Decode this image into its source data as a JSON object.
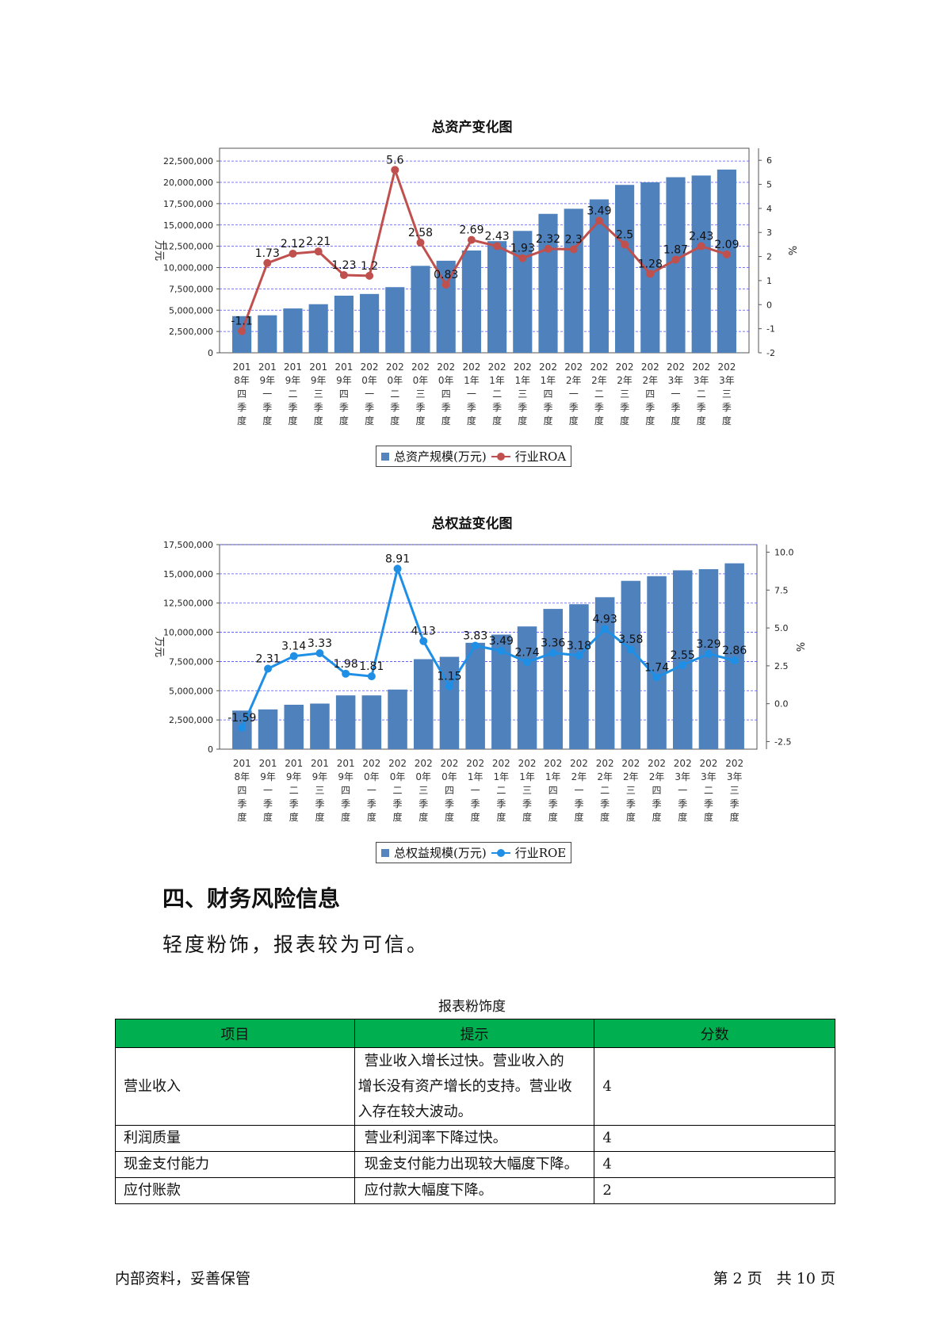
{
  "chart_data": [
    {
      "type": "bar",
      "title": "总资产变化图",
      "ylabel": "万元",
      "y2label": "%",
      "ylim": [
        0,
        24000000
      ],
      "y2lim": [
        -2,
        6.5
      ],
      "yticks": [
        "0",
        "2,500,000",
        "5,000,000",
        "7,500,000",
        "10,000,000",
        "12,500,000",
        "15,000,000",
        "17,500,000",
        "20,000,000",
        "22,500,000"
      ],
      "y2ticks": [
        "-2",
        "-1",
        "0",
        "1",
        "2",
        "3",
        "4",
        "5",
        "6"
      ],
      "categories": [
        "2018年四季度",
        "2019年一季度",
        "2019年二季度",
        "2019年三季度",
        "2019年四季度",
        "2020年一季度",
        "2020年二季度",
        "2020年三季度",
        "2020年四季度",
        "2021年一季度",
        "2021年二季度",
        "2021年三季度",
        "2021年四季度",
        "2022年一季度",
        "2022年二季度",
        "2022年三季度",
        "2022年四季度",
        "2023年一季度",
        "2023年二季度",
        "2023年三季度"
      ],
      "category_lines": [
        [
          "201",
          "8年",
          "四",
          "季",
          "度"
        ],
        [
          "201",
          "9年",
          "一",
          "季",
          "度"
        ],
        [
          "201",
          "9年",
          "二",
          "季",
          "度"
        ],
        [
          "201",
          "9年",
          "三",
          "季",
          "度"
        ],
        [
          "201",
          "9年",
          "四",
          "季",
          "度"
        ],
        [
          "202",
          "0年",
          "一",
          "季",
          "度"
        ],
        [
          "202",
          "0年",
          "二",
          "季",
          "度"
        ],
        [
          "202",
          "0年",
          "三",
          "季",
          "度"
        ],
        [
          "202",
          "0年",
          "四",
          "季",
          "度"
        ],
        [
          "202",
          "1年",
          "一",
          "季",
          "度"
        ],
        [
          "202",
          "1年",
          "二",
          "季",
          "度"
        ],
        [
          "202",
          "1年",
          "三",
          "季",
          "度"
        ],
        [
          "202",
          "1年",
          "四",
          "季",
          "度"
        ],
        [
          "202",
          "2年",
          "一",
          "季",
          "度"
        ],
        [
          "202",
          "2年",
          "二",
          "季",
          "度"
        ],
        [
          "202",
          "2年",
          "三",
          "季",
          "度"
        ],
        [
          "202",
          "2年",
          "四",
          "季",
          "度"
        ],
        [
          "202",
          "3年",
          "一",
          "季",
          "度"
        ],
        [
          "202",
          "3年",
          "二",
          "季",
          "度"
        ],
        [
          "202",
          "3年",
          "三",
          "季",
          "度"
        ]
      ],
      "series": [
        {
          "name": "总资产规模(万元)",
          "type": "bar",
          "color": "#4f81bd",
          "values": [
            4300000,
            4400000,
            5200000,
            5700000,
            6700000,
            6900000,
            7700000,
            10200000,
            10800000,
            12000000,
            13100000,
            14300000,
            16300000,
            16900000,
            18000000,
            19700000,
            20000000,
            20600000,
            20800000,
            21500000
          ]
        },
        {
          "name": "行业ROA",
          "type": "line",
          "axis": "y2",
          "color": "#c0504d",
          "values": [
            -1.1,
            1.73,
            2.12,
            2.21,
            1.23,
            1.2,
            5.6,
            2.58,
            0.83,
            2.69,
            2.43,
            1.93,
            2.32,
            2.3,
            3.49,
            2.5,
            1.28,
            1.87,
            2.43,
            2.09
          ],
          "labels": [
            "-1.1",
            "1.73",
            "2.12",
            "2.21",
            "1.23",
            "1.2",
            "5.6",
            "2.58",
            "0.83",
            "2.69",
            "2.43",
            "1.93",
            "2.32",
            "2.3",
            "3.49",
            "2.5",
            "1.28",
            "1.87",
            "2.43",
            "2.09"
          ]
        }
      ],
      "legend": "bottom"
    },
    {
      "type": "bar",
      "title": "总权益变化图",
      "ylabel": "万元",
      "y2label": "%",
      "ylim": [
        0,
        17500000
      ],
      "y2lim": [
        -3,
        10.5
      ],
      "yticks": [
        "0",
        "2,500,000",
        "5,000,000",
        "7,500,000",
        "10,000,000",
        "12,500,000",
        "15,000,000",
        "17,500,000"
      ],
      "y2ticks": [
        "-2.5",
        "0.0",
        "2.5",
        "5.0",
        "7.5",
        "10.0"
      ],
      "categories": [
        "2018年四季度",
        "2019年一季度",
        "2019年二季度",
        "2019年三季度",
        "2019年四季度",
        "2020年一季度",
        "2020年二季度",
        "2020年三季度",
        "2020年四季度",
        "2021年一季度",
        "2021年二季度",
        "2021年三季度",
        "2021年四季度",
        "2022年一季度",
        "2022年二季度",
        "2022年三季度",
        "2022年四季度",
        "2023年一季度",
        "2023年二季度",
        "2023年三季度"
      ],
      "category_lines": [
        [
          "201",
          "8年",
          "四",
          "季",
          "度"
        ],
        [
          "201",
          "9年",
          "一",
          "季",
          "度"
        ],
        [
          "201",
          "9年",
          "二",
          "季",
          "度"
        ],
        [
          "201",
          "9年",
          "三",
          "季",
          "度"
        ],
        [
          "201",
          "9年",
          "四",
          "季",
          "度"
        ],
        [
          "202",
          "0年",
          "一",
          "季",
          "度"
        ],
        [
          "202",
          "0年",
          "二",
          "季",
          "度"
        ],
        [
          "202",
          "0年",
          "三",
          "季",
          "度"
        ],
        [
          "202",
          "0年",
          "四",
          "季",
          "度"
        ],
        [
          "202",
          "1年",
          "一",
          "季",
          "度"
        ],
        [
          "202",
          "1年",
          "二",
          "季",
          "度"
        ],
        [
          "202",
          "1年",
          "三",
          "季",
          "度"
        ],
        [
          "202",
          "1年",
          "四",
          "季",
          "度"
        ],
        [
          "202",
          "2年",
          "一",
          "季",
          "度"
        ],
        [
          "202",
          "2年",
          "二",
          "季",
          "度"
        ],
        [
          "202",
          "2年",
          "三",
          "季",
          "度"
        ],
        [
          "202",
          "2年",
          "四",
          "季",
          "度"
        ],
        [
          "202",
          "3年",
          "一",
          "季",
          "度"
        ],
        [
          "202",
          "3年",
          "二",
          "季",
          "度"
        ],
        [
          "202",
          "3年",
          "三",
          "季",
          "度"
        ]
      ],
      "series": [
        {
          "name": "总权益规模(万元)",
          "type": "bar",
          "color": "#4f81bd",
          "values": [
            3300000,
            3400000,
            3800000,
            3900000,
            4600000,
            4600000,
            5100000,
            7700000,
            7900000,
            9100000,
            9800000,
            10500000,
            12000000,
            12400000,
            13000000,
            14400000,
            14800000,
            15300000,
            15400000,
            15900000
          ]
        },
        {
          "name": "行业ROE",
          "type": "line",
          "axis": "y2",
          "color": "#1f8fe5",
          "values": [
            -1.59,
            2.31,
            3.14,
            3.33,
            1.98,
            1.81,
            8.91,
            4.13,
            1.15,
            3.83,
            3.49,
            2.74,
            3.36,
            3.18,
            4.93,
            3.58,
            1.74,
            2.55,
            3.29,
            2.86
          ],
          "labels": [
            "-1.59",
            "2.31",
            "3.14",
            "3.33",
            "1.98",
            "1.81",
            "8.91",
            "4.13",
            "1.15",
            "3.83",
            "3.49",
            "2.74",
            "3.36",
            "3.18",
            "4.93",
            "3.58",
            "1.74",
            "2.55",
            "3.29",
            "2.86"
          ]
        }
      ],
      "legend": "bottom"
    }
  ],
  "section": {
    "heading": "四、财务风险信息",
    "summary": "轻度粉饰，报表较为可信。"
  },
  "table": {
    "caption": "报表粉饰度",
    "headers": [
      "项目",
      "提示",
      "分数"
    ],
    "rows": [
      {
        "item": "营业收入",
        "hint_lines": [
          "营业收入增长过快。营业收入的",
          "增长没有资产增长的支持。营业收",
          "入存在较大波动。"
        ],
        "score": "4"
      },
      {
        "item": "利润质量",
        "hint_lines": [
          "营业利润率下降过快。"
        ],
        "score": "4"
      },
      {
        "item": "现金支付能力",
        "hint_lines": [
          "现金支付能力出现较大幅度下降。"
        ],
        "score": "4"
      },
      {
        "item": "应付账款",
        "hint_lines": [
          "应付款大幅度下降。"
        ],
        "score": "2"
      }
    ]
  },
  "footer": {
    "left": "内部资料，妥善保管",
    "right": "第 2 页   共 10 页"
  }
}
